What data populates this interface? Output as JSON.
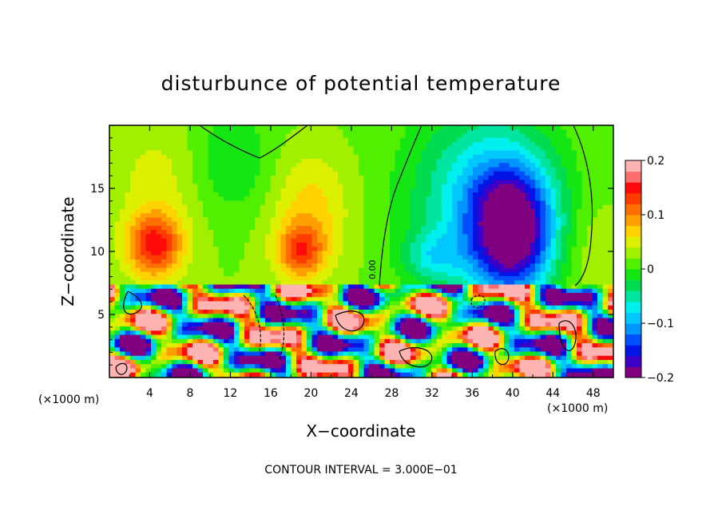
{
  "chart_data": {
    "type": "heatmap",
    "title": "disturbunce of potential temperature",
    "xlabel": "X−coordinate",
    "ylabel": "Z−coordinate",
    "x_unit": "(×1000 m)",
    "x_unit_right": "(×1000 m)",
    "xlim": [
      0,
      50
    ],
    "ylim": [
      0,
      20
    ],
    "x_ticks": [
      4,
      8,
      12,
      16,
      20,
      24,
      28,
      32,
      36,
      40,
      44,
      48
    ],
    "x_tick_labels": [
      "4",
      "8",
      "12",
      "16",
      "20",
      "24",
      "28",
      "32",
      "36",
      "40",
      "44",
      "48"
    ],
    "y_ticks": [
      5,
      10,
      15
    ],
    "y_tick_labels": [
      "5",
      "10",
      "15"
    ],
    "colorbar": {
      "min": -0.2,
      "max": 0.2,
      "ticks": [
        0.2,
        0.1,
        0,
        -0.1,
        -0.2
      ],
      "tick_labels": [
        "0.2",
        "0.1",
        "0",
        "−0.1",
        "−0.2"
      ],
      "colors": [
        "#800080",
        "#3c00c8",
        "#0014e6",
        "#0050ff",
        "#0096ff",
        "#00c8ff",
        "#00f0f0",
        "#00e6a0",
        "#00dc50",
        "#14e614",
        "#50f000",
        "#a0f000",
        "#dcf000",
        "#ffd200",
        "#ffa000",
        "#ff6e00",
        "#ff3c00",
        "#ff0a0a",
        "#ff6e6e",
        "#ffb4b4"
      ]
    },
    "contour_labels": [
      "0.00"
    ],
    "annotation": "CONTOUR INTERVAL = 3.000E−01"
  }
}
